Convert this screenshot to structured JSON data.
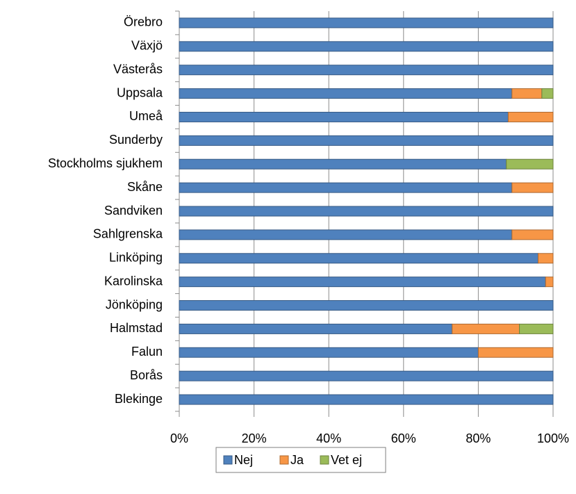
{
  "chart_data": {
    "type": "stacked_bar_horizontal",
    "categories": [
      "Örebro",
      "Växjö",
      "Västerås",
      "Uppsala",
      "Umeå",
      "Sunderby",
      "Stockholms sjukhem",
      "Skåne",
      "Sandviken",
      "Sahlgrenska",
      "Linköping",
      "Karolinska",
      "Jönköping",
      "Halmstad",
      "Falun",
      "Borås",
      "Blekinge"
    ],
    "series": [
      {
        "name": "Nej",
        "color": "#4f81bd",
        "values": [
          100,
          100,
          100,
          89,
          88,
          100,
          87.5,
          89,
          100,
          89,
          96,
          98,
          100,
          73,
          80,
          100,
          100
        ]
      },
      {
        "name": "Ja",
        "color": "#f79646",
        "values": [
          0,
          0,
          0,
          8,
          12,
          0,
          0,
          11,
          0,
          11,
          4,
          2,
          0,
          18,
          20,
          0,
          0
        ]
      },
      {
        "name": "Vet ej",
        "color": "#9bbb59",
        "values": [
          0,
          0,
          0,
          3,
          0,
          0,
          12.5,
          0,
          0,
          0,
          0,
          0,
          0,
          9,
          0,
          0,
          0
        ]
      }
    ],
    "xlim": [
      0,
      100
    ],
    "xticks": [
      {
        "value": 0,
        "label": "0%"
      },
      {
        "value": 20,
        "label": "20%"
      },
      {
        "value": 40,
        "label": "40%"
      },
      {
        "value": 60,
        "label": "60%"
      },
      {
        "value": 80,
        "label": "80%"
      },
      {
        "value": 100,
        "label": "100%"
      }
    ],
    "grid": true,
    "legend": "bottom"
  }
}
